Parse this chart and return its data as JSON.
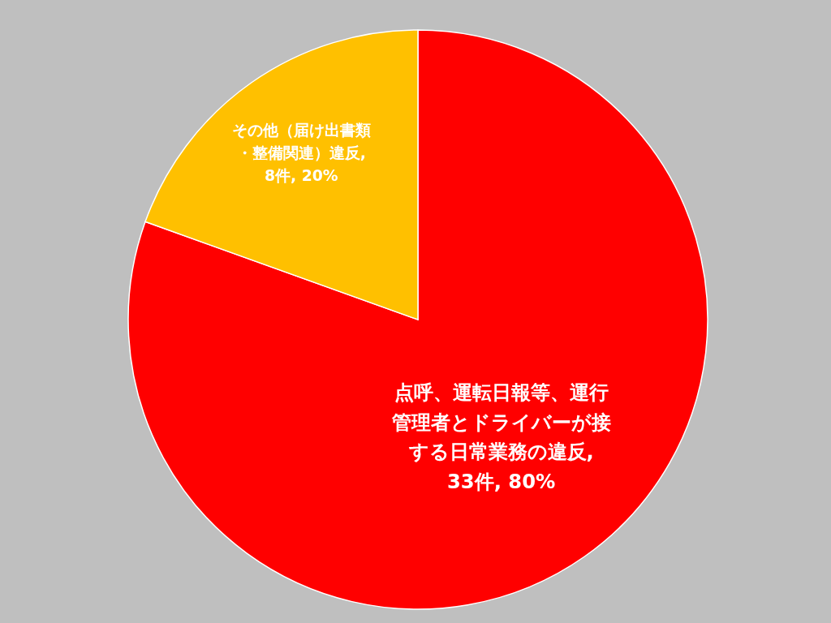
{
  "chart_data": {
    "type": "pie",
    "categories": [
      "点呼、運転日報等、運行管理者とドライバーが接する日常業務の違反",
      "その他（届け出書類・整備関連）違反"
    ],
    "values": [
      33,
      8
    ],
    "colors": [
      "#ff0000",
      "#ffc000"
    ],
    "value_labels": [
      ", 33件, 80%",
      ", 8件, 20%"
    ]
  }
}
